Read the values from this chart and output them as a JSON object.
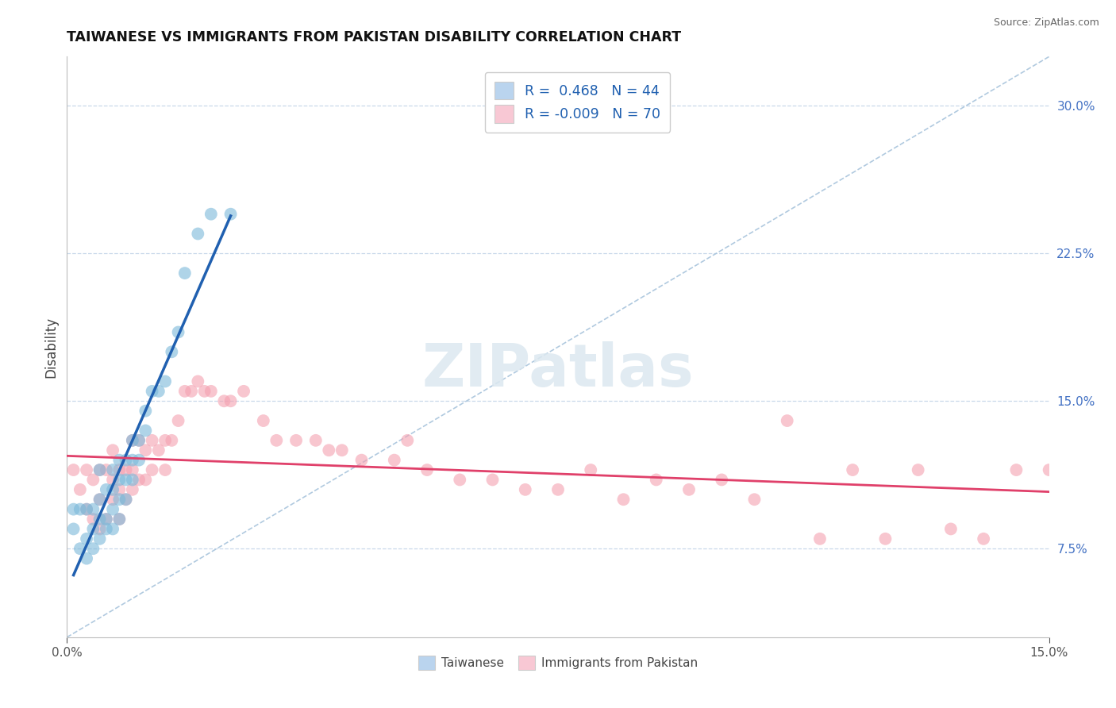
{
  "title": "TAIWANESE VS IMMIGRANTS FROM PAKISTAN DISABILITY CORRELATION CHART",
  "source": "Source: ZipAtlas.com",
  "ylabel": "Disability",
  "ylabel_right_ticks": [
    "7.5%",
    "15.0%",
    "22.5%",
    "30.0%"
  ],
  "ylabel_right_values": [
    0.075,
    0.15,
    0.225,
    0.3
  ],
  "x_min": 0.0,
  "x_max": 0.15,
  "y_min": 0.03,
  "y_max": 0.325,
  "R_taiwanese": 0.468,
  "N_taiwanese": 44,
  "R_pakistan": -0.009,
  "N_pakistan": 70,
  "taiwanese_color": "#7ab8d9",
  "pakistan_color": "#f4a0b0",
  "taiwanese_line_color": "#2060b0",
  "pakistan_line_color": "#e0406a",
  "legend_taiwanese_face": "#bad4ee",
  "legend_pakistan_face": "#f8c8d4",
  "background_color": "#ffffff",
  "grid_color": "#c8d8ea",
  "diag_color": "#a8c4dc",
  "tw_x": [
    0.001,
    0.001,
    0.002,
    0.002,
    0.003,
    0.003,
    0.003,
    0.004,
    0.004,
    0.004,
    0.005,
    0.005,
    0.005,
    0.005,
    0.006,
    0.006,
    0.006,
    0.007,
    0.007,
    0.007,
    0.007,
    0.008,
    0.008,
    0.008,
    0.008,
    0.009,
    0.009,
    0.009,
    0.01,
    0.01,
    0.01,
    0.011,
    0.011,
    0.012,
    0.012,
    0.013,
    0.014,
    0.015,
    0.016,
    0.017,
    0.018,
    0.02,
    0.022,
    0.025
  ],
  "tw_y": [
    0.085,
    0.095,
    0.075,
    0.095,
    0.07,
    0.08,
    0.095,
    0.075,
    0.085,
    0.095,
    0.08,
    0.09,
    0.1,
    0.115,
    0.085,
    0.09,
    0.105,
    0.085,
    0.095,
    0.105,
    0.115,
    0.09,
    0.1,
    0.11,
    0.12,
    0.1,
    0.11,
    0.12,
    0.11,
    0.12,
    0.13,
    0.12,
    0.13,
    0.135,
    0.145,
    0.155,
    0.155,
    0.16,
    0.175,
    0.185,
    0.215,
    0.235,
    0.245,
    0.245
  ],
  "pk_x": [
    0.001,
    0.002,
    0.003,
    0.003,
    0.004,
    0.004,
    0.005,
    0.005,
    0.005,
    0.006,
    0.006,
    0.007,
    0.007,
    0.007,
    0.008,
    0.008,
    0.008,
    0.009,
    0.009,
    0.01,
    0.01,
    0.01,
    0.011,
    0.011,
    0.012,
    0.012,
    0.013,
    0.013,
    0.014,
    0.015,
    0.015,
    0.016,
    0.017,
    0.018,
    0.019,
    0.02,
    0.021,
    0.022,
    0.024,
    0.025,
    0.027,
    0.03,
    0.032,
    0.035,
    0.038,
    0.04,
    0.042,
    0.045,
    0.05,
    0.052,
    0.055,
    0.06,
    0.065,
    0.07,
    0.075,
    0.08,
    0.085,
    0.09,
    0.095,
    0.1,
    0.105,
    0.11,
    0.115,
    0.12,
    0.125,
    0.13,
    0.135,
    0.14,
    0.145,
    0.15
  ],
  "pk_y": [
    0.115,
    0.105,
    0.095,
    0.115,
    0.09,
    0.11,
    0.085,
    0.1,
    0.115,
    0.09,
    0.115,
    0.1,
    0.11,
    0.125,
    0.09,
    0.105,
    0.115,
    0.1,
    0.115,
    0.105,
    0.115,
    0.13,
    0.11,
    0.13,
    0.11,
    0.125,
    0.115,
    0.13,
    0.125,
    0.115,
    0.13,
    0.13,
    0.14,
    0.155,
    0.155,
    0.16,
    0.155,
    0.155,
    0.15,
    0.15,
    0.155,
    0.14,
    0.13,
    0.13,
    0.13,
    0.125,
    0.125,
    0.12,
    0.12,
    0.13,
    0.115,
    0.11,
    0.11,
    0.105,
    0.105,
    0.115,
    0.1,
    0.11,
    0.105,
    0.11,
    0.1,
    0.14,
    0.08,
    0.115,
    0.08,
    0.115,
    0.085,
    0.08,
    0.115,
    0.115
  ]
}
